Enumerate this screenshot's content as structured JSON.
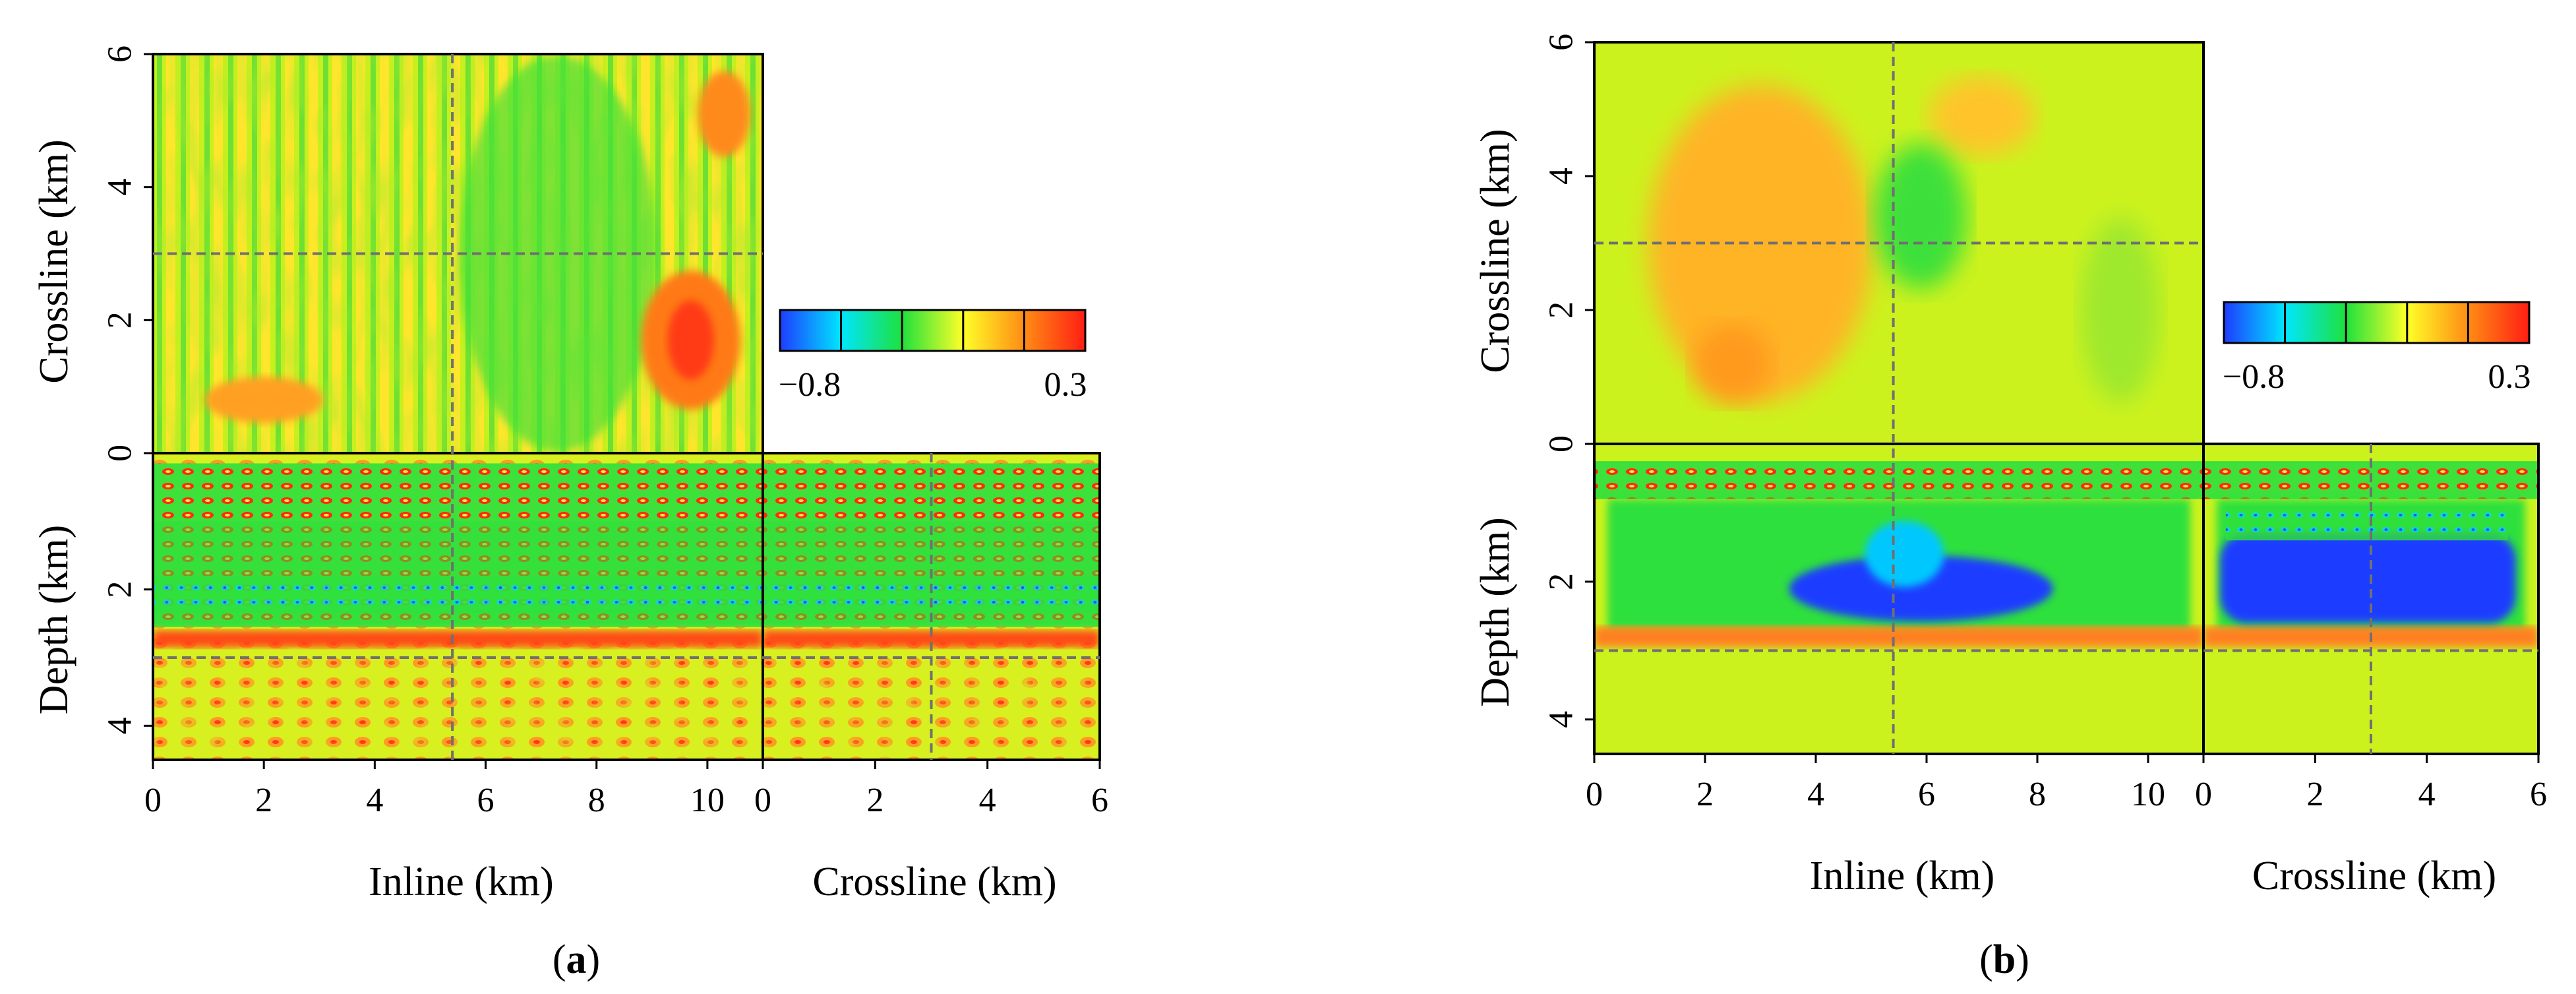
{
  "chart_data": [
    {
      "type": "heatmap",
      "panel_label": "a",
      "title": "",
      "colorbar": {
        "min_label": "−0.8",
        "max_label": "0.3",
        "vmin": -0.8,
        "vmax": 0.3,
        "colors": [
          "#1e3cff",
          "#00e6ff",
          "#1ee13c",
          "#ffff28",
          "#ff8c14",
          "#ff1e14"
        ]
      },
      "top_view": {
        "xlabel": "Inline (km)",
        "ylabel": "Crossline (km)",
        "xlim": [
          0,
          11
        ],
        "ylim": [
          0,
          6
        ],
        "yticks": [
          "0",
          "2",
          "4",
          "6"
        ],
        "slice_inline_km": 5.4,
        "slice_crossline_km": 3.0
      },
      "inline_section": {
        "xlabel": "Inline (km)",
        "ylabel": "Depth (km)",
        "xlim": [
          0,
          11
        ],
        "ylim": [
          4.5,
          0
        ],
        "xticks": [
          "0",
          "2",
          "4",
          "6",
          "8",
          "10"
        ],
        "yticks": [
          "2",
          "4"
        ],
        "slice_depth_km": 3.0
      },
      "crossline_section": {
        "xlabel": "Crossline (km)",
        "xlim": [
          0,
          6
        ],
        "ylim": [
          4.5,
          0
        ],
        "xticks": [
          "0",
          "2",
          "4",
          "6"
        ]
      }
    },
    {
      "type": "heatmap",
      "panel_label": "b",
      "title": "",
      "colorbar": {
        "min_label": "−0.8",
        "max_label": "0.3",
        "vmin": -0.8,
        "vmax": 0.3,
        "colors": [
          "#1e3cff",
          "#00e6ff",
          "#1ee13c",
          "#ffff28",
          "#ff8c14",
          "#ff1e14"
        ]
      },
      "top_view": {
        "xlabel": "Inline (km)",
        "ylabel": "Crossline (km)",
        "xlim": [
          0,
          11
        ],
        "ylim": [
          0,
          6
        ],
        "yticks": [
          "0",
          "2",
          "4",
          "6"
        ],
        "slice_inline_km": 5.4,
        "slice_crossline_km": 3.0
      },
      "inline_section": {
        "xlabel": "Inline (km)",
        "ylabel": "Depth (km)",
        "xlim": [
          0,
          11
        ],
        "ylim": [
          4.5,
          0
        ],
        "xticks": [
          "0",
          "2",
          "4",
          "6",
          "8",
          "10"
        ],
        "yticks": [
          "2",
          "4"
        ],
        "slice_depth_km": 3.0
      },
      "crossline_section": {
        "xlabel": "Crossline (km)",
        "xlim": [
          0,
          6
        ],
        "ylim": [
          4.5,
          0
        ],
        "xticks": [
          "0",
          "2",
          "4",
          "6"
        ]
      }
    }
  ]
}
